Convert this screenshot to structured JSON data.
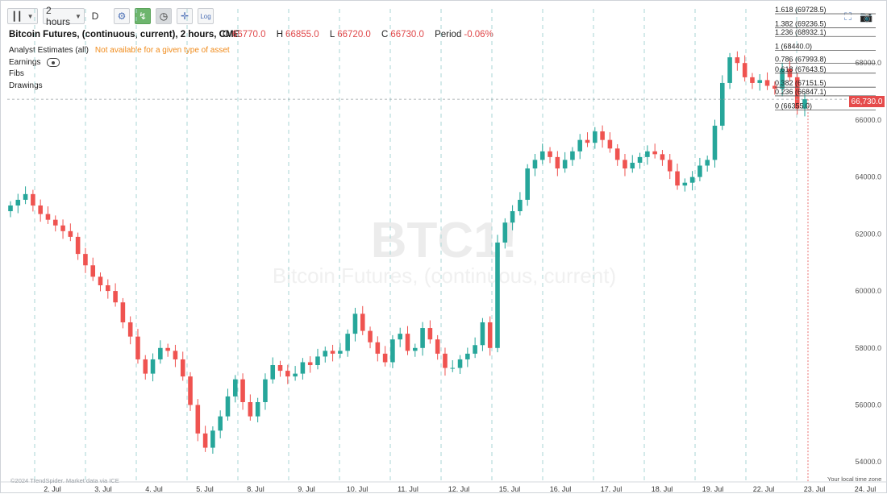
{
  "toolbar": {
    "chart_type_icon": "candles-icon",
    "interval": "2 hours",
    "period_letter": "D",
    "log_label": "Log"
  },
  "header": {
    "title": "Bitcoin Futures, (continuous, current), 2 hours, CME",
    "o_label": "O",
    "o": "66770.0",
    "h_label": "H",
    "h": "66855.0",
    "l_label": "L",
    "l": "66720.0",
    "c_label": "C",
    "c": "66730.0",
    "period_label": "Period",
    "period": "-0.06%"
  },
  "studies": {
    "analyst": "Analyst Estimates (all)",
    "analyst_note": "Not available for a given type of asset",
    "earnings": "Earnings",
    "fibs": "Fibs",
    "drawings": "Drawings"
  },
  "watermark": {
    "symbol": "BTC1!",
    "name": "Bitcoin Futures, (continuous, current)"
  },
  "last_price": "66,730.0",
  "footer": {
    "credit": "©2024 TrendSpider. Market data via ICE",
    "timezone": "Your local time zone"
  },
  "colors": {
    "up": "#26a69a",
    "down": "#ef5350",
    "accent_green": "#6db56d",
    "price_tag": "#e54b4b"
  },
  "chart_data": {
    "type": "candlestick",
    "title": "Bitcoin Futures, (continuous, current), 2 hours, CME",
    "x_ticks": [
      "2. Jul",
      "3. Jul",
      "4. Jul",
      "5. Jul",
      "8. Jul",
      "9. Jul",
      "10. Jul",
      "11. Jul",
      "12. Jul",
      "15. Jul",
      "16. Jul",
      "17. Jul",
      "18. Jul",
      "19. Jul",
      "22. Jul",
      "23. Jul",
      "24. Jul"
    ],
    "y_ticks": [
      54000,
      56000,
      58000,
      60000,
      62000,
      64000,
      66000,
      68000
    ],
    "ylim": [
      53300,
      69900
    ],
    "last_price": 66730,
    "fib_levels": [
      {
        "label": "1.618 (69728.5)",
        "value": 69728.5
      },
      {
        "label": "1.382 (69236.5)",
        "value": 69236.5
      },
      {
        "label": "1.236 (68932.1)",
        "value": 68932.1
      },
      {
        "label": "1 (68440.0)",
        "value": 68440.0
      },
      {
        "label": "0.786 (67993.8)",
        "value": 67993.8
      },
      {
        "label": "0.618 (67643.5)",
        "value": 67643.5
      },
      {
        "label": "0.382 (67151.5)",
        "value": 67151.5
      },
      {
        "label": "0.236 (66847.1)",
        "value": 66847.1
      },
      {
        "label": "0 (66355.0)",
        "value": 66355.0
      }
    ],
    "close_series": [
      63000,
      63200,
      63400,
      63000,
      62700,
      62500,
      62300,
      62100,
      61900,
      61300,
      60900,
      60500,
      60200,
      60000,
      59600,
      58900,
      58400,
      57600,
      57100,
      57600,
      58000,
      57900,
      57600,
      57000,
      56000,
      55000,
      54500,
      55100,
      55600,
      56300,
      56900,
      56100,
      55600,
      56100,
      56900,
      57400,
      57200,
      57000,
      57100,
      57500,
      57400,
      57700,
      57900,
      57800,
      57900,
      58500,
      59200,
      58600,
      58200,
      57800,
      57500,
      58300,
      58500,
      57900,
      58000,
      58700,
      58300,
      57800,
      57300,
      57300,
      57600,
      57800,
      58100,
      58900,
      58000,
      61700,
      62400,
      62800,
      63200,
      64300,
      64600,
      64900,
      64700,
      64300,
      64600,
      64900,
      65300,
      65200,
      65600,
      65300,
      65000,
      64600,
      64300,
      64500,
      64700,
      64900,
      64800,
      64600,
      64200,
      63700,
      63800,
      64000,
      64400,
      64600,
      65800,
      67300,
      68200,
      68000,
      67500,
      67300,
      67400,
      67200,
      67100,
      67800,
      67500,
      66400,
      66730
    ]
  }
}
